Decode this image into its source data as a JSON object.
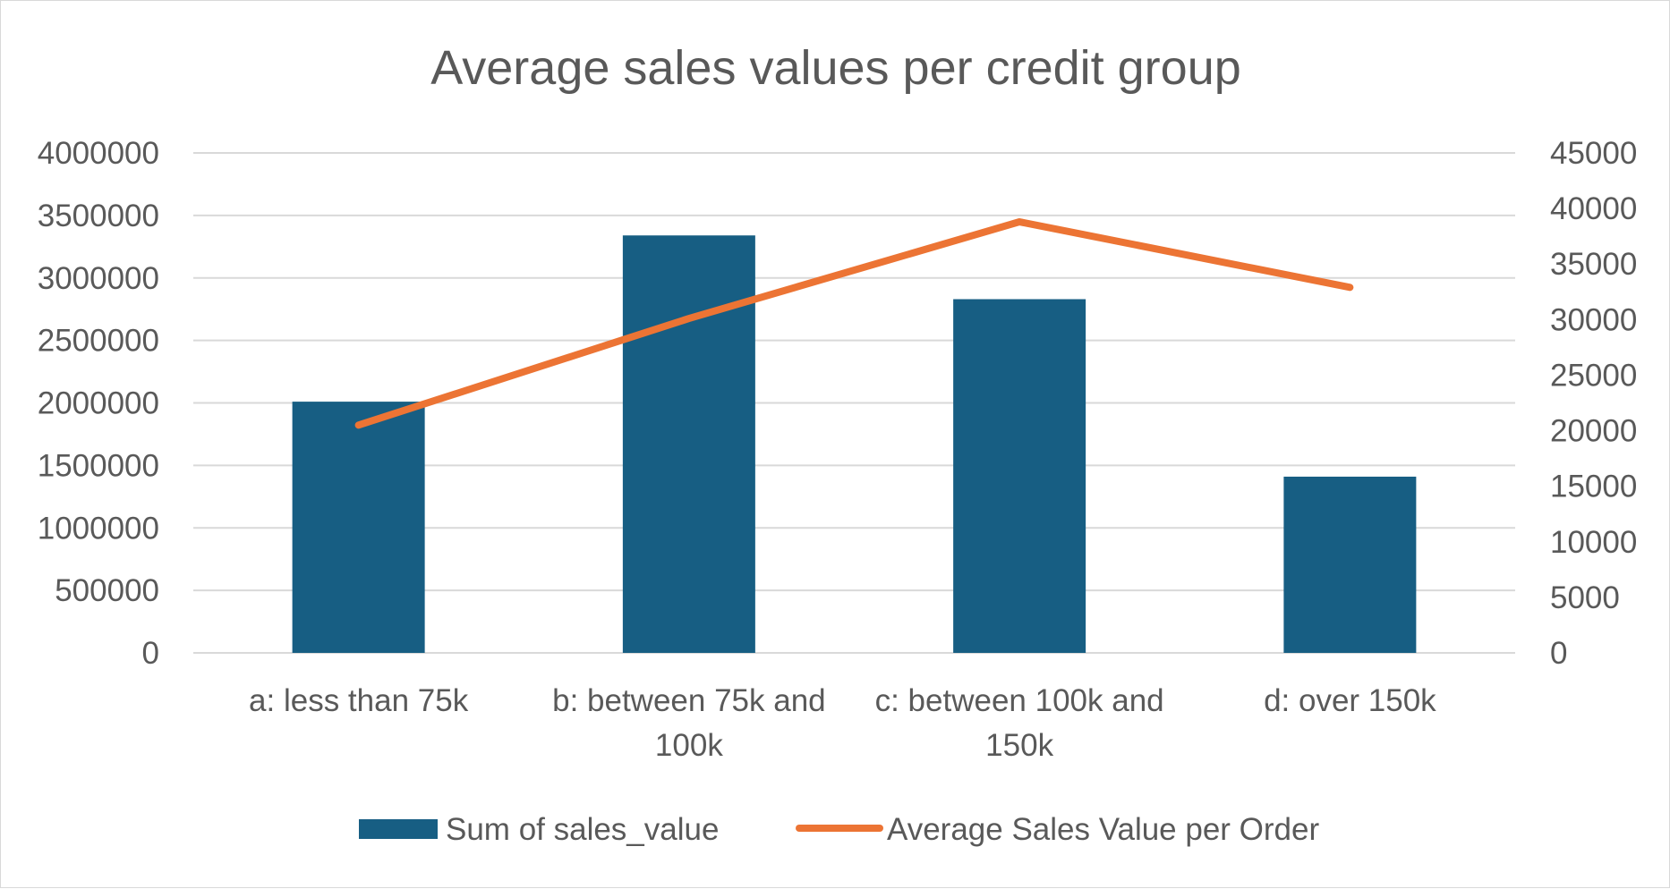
{
  "chart_data": {
    "type": "bar",
    "title": "Average sales values per credit group",
    "categories": [
      "a: less than 75k",
      "b: between 75k and 100k",
      "c: between 100k and 150k",
      "d: over 150k"
    ],
    "series": [
      {
        "name": "Sum of sales_value",
        "type": "bar",
        "axis": "left",
        "color": "#175e83",
        "values": [
          2010000,
          3340000,
          2830000,
          1410000
        ]
      },
      {
        "name": "Average Sales Value per Order",
        "type": "line",
        "axis": "right",
        "color": "#ec7434",
        "values": [
          20500,
          30100,
          38800,
          32900
        ]
      }
    ],
    "y_left": {
      "ylim": [
        0,
        4000000
      ],
      "ticks": [
        "4000000",
        "3500000",
        "3000000",
        "2500000",
        "2000000",
        "1500000",
        "1000000",
        "500000",
        "0"
      ]
    },
    "y_right": {
      "ylim": [
        0,
        45000
      ],
      "ticks": [
        "45000",
        "40000",
        "35000",
        "30000",
        "25000",
        "20000",
        "15000",
        "10000",
        "5000",
        "0"
      ]
    },
    "grid": true,
    "gridline_color": "#d9d9d9",
    "legend_position": "bottom"
  }
}
